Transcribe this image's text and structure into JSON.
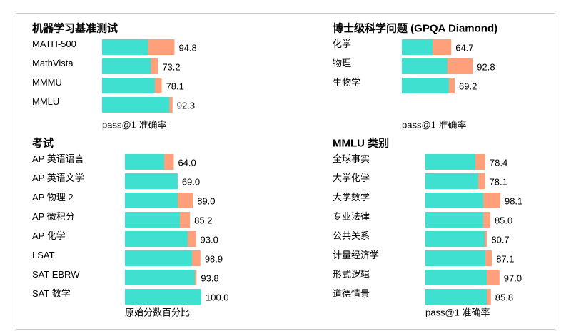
{
  "chart_data": [
    {
      "type": "bar",
      "orientation": "horizontal",
      "overlay": true,
      "title": "机器学习基准测试",
      "xlabel": "pass@1 准确率",
      "xlim": [
        0,
        100
      ],
      "grid": false,
      "categories": [
        "MATH-500",
        "MathVista",
        "MMMU",
        "MMLU"
      ],
      "series": [
        {
          "color": "#40e0d0",
          "values": [
            60.3,
            63.8,
            69.1,
            88.0
          ]
        },
        {
          "color": "#ffa07a",
          "values": [
            94.8,
            73.2,
            78.1,
            92.3
          ]
        }
      ],
      "data_labels": [
        "94.8",
        "73.2",
        "78.1",
        "92.3"
      ]
    },
    {
      "type": "bar",
      "orientation": "horizontal",
      "overlay": true,
      "title": "博士级科学问题 (GPQA Diamond)",
      "xlabel": "pass@1 准确率",
      "xlim": [
        0,
        100
      ],
      "grid": false,
      "categories": [
        "化学",
        "物理",
        "生物学"
      ],
      "series": [
        {
          "color": "#40e0d0",
          "values": [
            40.2,
            59.5,
            61.6
          ]
        },
        {
          "color": "#ffa07a",
          "values": [
            64.7,
            92.8,
            69.2
          ]
        }
      ],
      "data_labels": [
        "64.7",
        "92.8",
        "69.2"
      ]
    },
    {
      "type": "bar",
      "orientation": "horizontal",
      "overlay": true,
      "title": "考试",
      "xlabel": "原始分数百分比",
      "xlim": [
        0,
        100
      ],
      "grid": false,
      "categories": [
        "AP 英语语言",
        "AP 英语文学",
        "AP 物理 2",
        "AP 微积分",
        "AP 化学",
        "LSAT",
        "SAT EBRW",
        "SAT 数学"
      ],
      "series": [
        {
          "color": "#40e0d0",
          "values": [
            51.5,
            69.0,
            69.2,
            72.0,
            82.2,
            87.9,
            91.6,
            100.0
          ]
        },
        {
          "color": "#ffa07a",
          "values": [
            64.0,
            69.0,
            89.0,
            85.2,
            93.0,
            98.9,
            93.8,
            100.0
          ]
        }
      ],
      "data_labels": [
        "64.0",
        "69.0",
        "89.0",
        "85.2",
        "93.0",
        "98.9",
        "93.8",
        "100.0"
      ]
    },
    {
      "type": "bar",
      "orientation": "horizontal",
      "overlay": true,
      "title": "MMLU 类别",
      "xlabel": "pass@1 准确率",
      "xlim": [
        0,
        100
      ],
      "grid": false,
      "categories": [
        "全球事实",
        "大学化学",
        "大学数学",
        "专业法律",
        "公共关系",
        "计量经济学",
        "形式逻辑",
        "道德情景"
      ],
      "series": [
        {
          "color": "#40e0d0",
          "values": [
            65.4,
            69.2,
            75.7,
            75.7,
            77.6,
            78.5,
            80.4,
            80.4
          ]
        },
        {
          "color": "#ffa07a",
          "values": [
            78.4,
            78.1,
            98.1,
            85.0,
            80.7,
            87.1,
            97.0,
            85.8
          ]
        }
      ],
      "data_labels": [
        "78.4",
        "78.1",
        "98.1",
        "85.0",
        "80.7",
        "87.1",
        "97.0",
        "85.8"
      ]
    }
  ]
}
